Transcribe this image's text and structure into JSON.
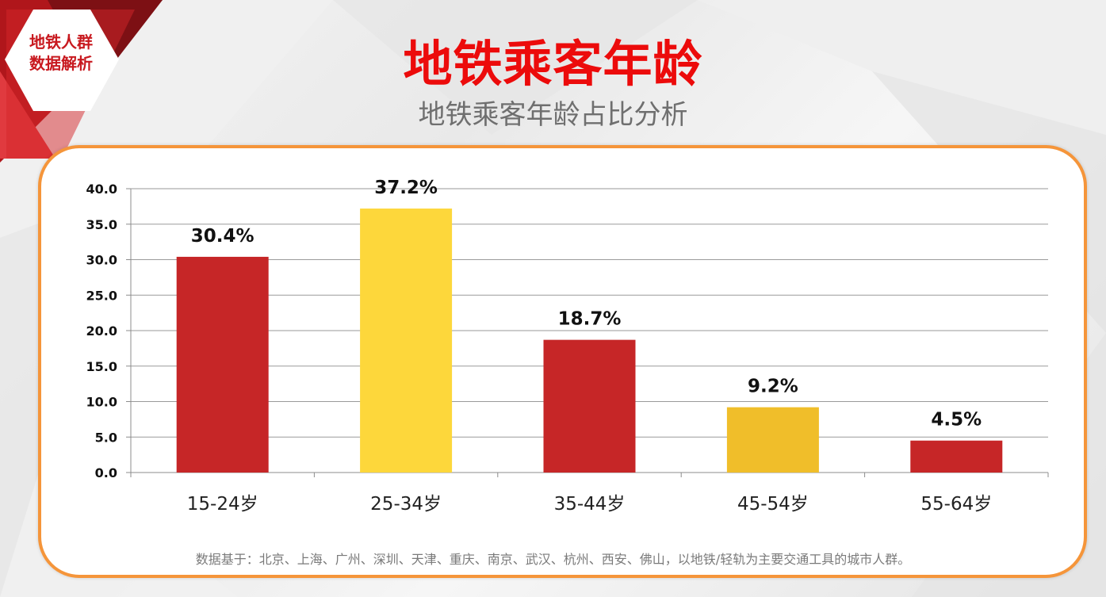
{
  "badge": {
    "line1": "地铁人群",
    "line2": "数据解析"
  },
  "header": {
    "title": "地铁乘客年龄",
    "subtitle": "地铁乘客年龄占比分析"
  },
  "footnote": "数据基于：北京、上海、广州、深圳、天津、重庆、南京、武汉、杭州、西安、佛山，以地铁/轻轨为主要交通工具的城市人群。",
  "colors": {
    "accent_red": "#c8191f",
    "title_red": "#ec0b0b",
    "accent_yellow": "#fdd535",
    "frame_orange": "#f5953a",
    "bar_red": "#c62627",
    "bar_yellow": "#fdd73b",
    "bar_gold": "#f0be2a"
  },
  "chart_data": {
    "type": "bar",
    "categories": [
      "15-24岁",
      "25-34岁",
      "35-44岁",
      "45-54岁",
      "55-64岁"
    ],
    "values": [
      30.4,
      37.2,
      18.7,
      9.2,
      4.5
    ],
    "data_labels": [
      "30.4%",
      "37.2%",
      "18.7%",
      "9.2%",
      "4.5%"
    ],
    "bar_colors": [
      "#c62627",
      "#fdd73b",
      "#c62627",
      "#f0be2a",
      "#c62627"
    ],
    "y_ticks": [
      "0.0",
      "5.0",
      "10.0",
      "15.0",
      "20.0",
      "25.0",
      "30.0",
      "35.0",
      "40.0"
    ],
    "ylim": [
      0,
      40
    ],
    "grid": true,
    "legend": false,
    "title": "",
    "xlabel": "",
    "ylabel": ""
  }
}
